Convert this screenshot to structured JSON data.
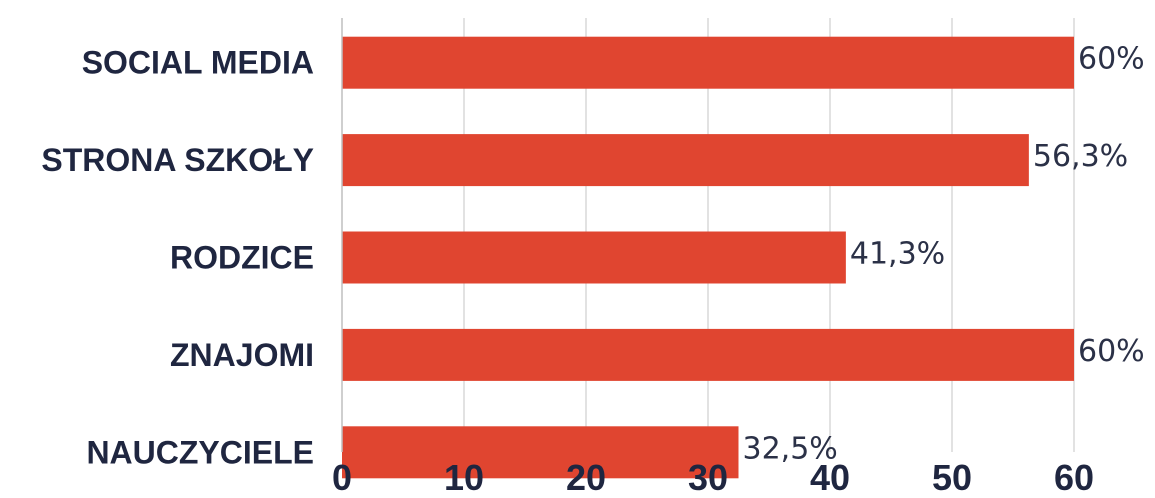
{
  "chart_data": {
    "type": "bar",
    "orientation": "horizontal",
    "title": "",
    "xlabel": "",
    "ylabel": "",
    "categories": [
      "SOCIAL MEDIA",
      "STRONA SZKOŁY",
      "RODZICE",
      "ZNAJOMI",
      "NAUCZYCIELE"
    ],
    "values": [
      60,
      56.3,
      41.3,
      60,
      32.5
    ],
    "data_labels": [
      "60%",
      "56,3%",
      "41,3%",
      "60%",
      "32,5%"
    ],
    "xlim": [
      0,
      60
    ],
    "xticks": [
      0,
      10,
      20,
      30,
      40,
      50,
      60
    ],
    "grid": true,
    "legend": "none",
    "colors": {
      "bar": "#e04530"
    }
  }
}
